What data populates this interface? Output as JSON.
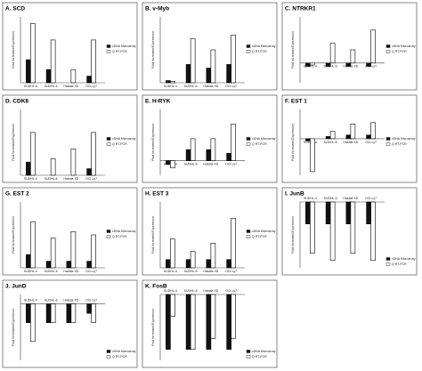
{
  "chart_data": [
    {
      "type": "bar",
      "title": "A. SCD",
      "y_label": "Fold Increased Expression",
      "categories": [
        "SUDHL-4",
        "SUDHL-6",
        "Hakata XD",
        "OCI-Ly7"
      ],
      "series": [
        {
          "name": "cDNA Microarray",
          "color": "#111111",
          "values": [
            3.5,
            2,
            0,
            1
          ]
        },
        {
          "name": "Q RT-PCR",
          "color": "#ffffff",
          "values": [
            9,
            6.5,
            2,
            6.5
          ]
        }
      ],
      "ylim": [
        0,
        10
      ]
    },
    {
      "type": "bar",
      "title": "B. v-Myb",
      "y_label": "Fold Increased Expression",
      "categories": [
        "SUDHL-4",
        "SUDHL-6",
        "Hakata XD",
        "OCI-Ly7"
      ],
      "series": [
        {
          "name": "cDNA Microarray",
          "color": "#111111",
          "values": [
            0.3,
            2.5,
            2,
            2.5
          ]
        },
        {
          "name": "Q RT-PCR",
          "color": "#ffffff",
          "values": [
            0.2,
            6,
            4.5,
            6.5
          ]
        }
      ],
      "ylim": [
        0,
        9
      ]
    },
    {
      "type": "bar",
      "title": "C. NTRKR1",
      "y_label": "Fold Increased Expression",
      "categories": [
        "SUDHL-4",
        "SUDHL-6",
        "Hakata XD",
        "OCI-Ly7"
      ],
      "series": [
        {
          "name": "cDNA Microarray",
          "color": "#111111",
          "values": [
            -0.5,
            -0.5,
            -0.5,
            -0.5
          ]
        },
        {
          "name": "Q RT-PCR",
          "color": "#ffffff",
          "values": [
            -0.3,
            3,
            2,
            5
          ]
        }
      ],
      "ylim": [
        -3,
        7
      ]
    },
    {
      "type": "bar",
      "title": "D. CDK8",
      "y_label": "Fold Increased Expression",
      "categories": [
        "SUDHL-4",
        "SUDHL-6",
        "Hakata XD",
        "OCI-Ly7"
      ],
      "series": [
        {
          "name": "cDNA Microarray",
          "color": "#111111",
          "values": [
            2,
            0,
            0,
            1
          ]
        },
        {
          "name": "Q RT-PCR",
          "color": "#ffffff",
          "values": [
            6.5,
            2.5,
            4,
            6.5
          ]
        }
      ],
      "ylim": [
        0,
        10
      ]
    },
    {
      "type": "bar",
      "title": "E. H-RYK",
      "y_label": "Fold Increased Expression",
      "categories": [
        "SUDHL-4",
        "SUDHL-6",
        "Hakata XD",
        "OCI-Ly7"
      ],
      "series": [
        {
          "name": "cDNA Microarray",
          "color": "#111111",
          "values": [
            -0.5,
            1.5,
            1.5,
            1
          ]
        },
        {
          "name": "Q RT-PCR",
          "color": "#ffffff",
          "values": [
            -1,
            3,
            3,
            5
          ]
        }
      ],
      "ylim": [
        -2,
        7
      ]
    },
    {
      "type": "bar",
      "title": "F. EST 1",
      "y_label": "Fold Increased Expression",
      "categories": [
        "SUDHL-4",
        "SUDHL-6",
        "Hakata XD",
        "OCI-Ly7"
      ],
      "series": [
        {
          "name": "cDNA Microarray",
          "color": "#111111",
          "values": [
            -0.3,
            0.3,
            0.5,
            0.5
          ]
        },
        {
          "name": "Q RT-PCR",
          "color": "#ffffff",
          "values": [
            -4.5,
            1,
            2,
            2.2
          ]
        }
      ],
      "ylim": [
        -5,
        4
      ]
    },
    {
      "type": "bar",
      "title": "G. EST 2",
      "y_label": "Fold Increased Expression",
      "categories": [
        "SUDHL-4",
        "SUDHL-6",
        "Hakata XD",
        "OCI-Ly7"
      ],
      "series": [
        {
          "name": "cDNA Microarray",
          "color": "#111111",
          "values": [
            2,
            1,
            1,
            1
          ]
        },
        {
          "name": "Q RT-PCR",
          "color": "#ffffff",
          "values": [
            7,
            4.5,
            5.5,
            5
          ]
        }
      ],
      "ylim": [
        0,
        10
      ]
    },
    {
      "type": "bar",
      "title": "H. EST 3",
      "y_label": "Fold Increased Expression",
      "categories": [
        "SUDHL-4",
        "SUDHL-6",
        "Hakata XD",
        "OCI-Ly7"
      ],
      "series": [
        {
          "name": "cDNA Microarray",
          "color": "#111111",
          "values": [
            1,
            1,
            1,
            1
          ]
        },
        {
          "name": "Q RT-PCR",
          "color": "#ffffff",
          "values": [
            3.5,
            2,
            3,
            6
          ]
        }
      ],
      "ylim": [
        0,
        8
      ]
    },
    {
      "type": "bar",
      "title": "I. JunB",
      "y_label": "Fold Increased Expression",
      "categories": [
        "SUDHL-4",
        "SUDHL-6",
        "Hakata XD",
        "OCI-Ly7"
      ],
      "series": [
        {
          "name": "cDNA Microarray",
          "color": "#111111",
          "values": [
            -3,
            -3,
            -3,
            -3
          ]
        },
        {
          "name": "Q RT-PCR",
          "color": "#ffffff",
          "values": [
            -7,
            -8,
            -7,
            -8
          ]
        }
      ],
      "ylim": [
        -9,
        0
      ]
    },
    {
      "type": "bar",
      "title": "J. JunD",
      "y_label": "Fold Increased Expression",
      "categories": [
        "SUDHL-4",
        "SUDHL-6",
        "Hakata XD",
        "OCI-Ly7"
      ],
      "series": [
        {
          "name": "cDNA Microarray",
          "color": "#111111",
          "values": [
            -2,
            -2,
            -2,
            -1
          ]
        },
        {
          "name": "Q RT-PCR",
          "color": "#ffffff",
          "values": [
            -4,
            -2,
            -2,
            -2
          ]
        }
      ],
      "ylim": [
        -6,
        1
      ]
    },
    {
      "type": "bar",
      "title": "K. FosB",
      "y_label": "Fold Increased Expression",
      "categories": [
        "SUDHL-4",
        "SUDHL-6",
        "Hakata XD",
        "OCI-Ly7"
      ],
      "series": [
        {
          "name": "cDNA Microarray",
          "color": "#111111",
          "values": [
            -5,
            -5,
            -5,
            -5
          ]
        },
        {
          "name": "Q RT-PCR",
          "color": "#ffffff",
          "values": [
            -2,
            -5,
            -4,
            -4
          ]
        }
      ],
      "ylim": [
        -6,
        0
      ]
    }
  ]
}
